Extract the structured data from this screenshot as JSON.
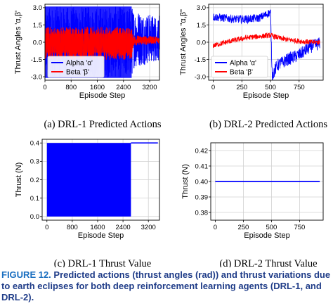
{
  "caption": {
    "label": "FIGURE 12.",
    "text": "Predicted actions (thrust angles (rad)) and thrust variations due to earth eclipses for both deep reinforcement learning agents (DRL-1, and DRL-2)."
  },
  "panels": [
    {
      "id": "a",
      "subcaption": "(a)  DRL-1 Predicted Actions",
      "chart_data": {
        "type": "line",
        "xlabel": "Episode Step",
        "ylabel": "Thrust Angles 'α,β'",
        "xlim": [
          0,
          3500
        ],
        "ylim": [
          -3.3,
          3.3
        ],
        "xticks": [
          0,
          800,
          1600,
          2400,
          3200
        ],
        "yticks": [
          -3.0,
          -1.5,
          0.0,
          1.5,
          3.0
        ],
        "grid": true,
        "legend": "lower-left",
        "series": [
          {
            "name": "Alpha 'α'",
            "color": "#0000ff",
            "description_points": [
              [
                0,
                0.0
              ],
              [
                2650,
                0.0
              ],
              [
                2700,
                0.4
              ],
              [
                3000,
                0.6
              ],
              [
                3500,
                0.7
              ]
            ],
            "band_low": [
              [
                0,
                -3.1
              ],
              [
                2650,
                -3.1
              ],
              [
                2700,
                -2.3
              ],
              [
                3000,
                -2.0
              ],
              [
                3500,
                -1.6
              ]
            ],
            "band_high": [
              [
                0,
                3.1
              ],
              [
                2650,
                3.1
              ],
              [
                2700,
                3.0
              ],
              [
                3000,
                2.6
              ],
              [
                3500,
                2.3
              ]
            ]
          },
          {
            "name": "Beta 'β'",
            "color": "#ff0000",
            "band_low": [
              [
                0,
                -1.6
              ],
              [
                2650,
                -1.5
              ],
              [
                2700,
                -0.3
              ],
              [
                3500,
                -0.1
              ]
            ],
            "band_high": [
              [
                0,
                1.4
              ],
              [
                2650,
                1.3
              ],
              [
                2700,
                0.6
              ],
              [
                3500,
                0.5
              ]
            ]
          }
        ]
      }
    },
    {
      "id": "b",
      "subcaption": "(b)  DRL-2 Predicted Actions",
      "chart_data": {
        "type": "line",
        "xlabel": "Episode Step",
        "ylabel": "Thrust Angles \"α,β\"",
        "xlim": [
          -40,
          960
        ],
        "ylim": [
          -3.3,
          3.3
        ],
        "xticks": [
          0,
          250,
          500,
          750
        ],
        "yticks": [
          -3.0,
          -1.5,
          0.0,
          1.5,
          3.0
        ],
        "grid": true,
        "legend": "lower-left",
        "series": [
          {
            "name": "Alpha 'α'",
            "color": "#0000ff",
            "points": [
              [
                0,
                2.2
              ],
              [
                100,
                2.1
              ],
              [
                200,
                2.0
              ],
              [
                300,
                2.0
              ],
              [
                400,
                2.1
              ],
              [
                500,
                2.6
              ],
              [
                515,
                -2.9
              ],
              [
                560,
                -2.0
              ],
              [
                650,
                -1.5
              ],
              [
                750,
                -1.1
              ],
              [
                850,
                -0.4
              ],
              [
                930,
                -0.1
              ]
            ]
          },
          {
            "name": "Beta 'β'",
            "color": "#ff0000",
            "points": [
              [
                0,
                -0.3
              ],
              [
                150,
                0.1
              ],
              [
                300,
                0.4
              ],
              [
                500,
                0.6
              ],
              [
                600,
                0.3
              ],
              [
                750,
                0.1
              ],
              [
                850,
                0.0
              ],
              [
                930,
                0.0
              ]
            ]
          }
        ]
      }
    },
    {
      "id": "c",
      "subcaption": "(c)  DRL-1 Thrust Value",
      "chart_data": {
        "type": "area",
        "xlabel": "Episode Step",
        "ylabel": "Thrust (N)",
        "xlim": [
          -150,
          3550
        ],
        "ylim": [
          -0.02,
          0.42
        ],
        "xticks": [
          0,
          800,
          1600,
          2400,
          3200
        ],
        "yticks": [
          0.0,
          0.1,
          0.2,
          0.3,
          0.4
        ],
        "grid": true,
        "series": [
          {
            "color": "#0000ff",
            "points": [
              [
                0,
                0.4
              ],
              [
                2650,
                0.4
              ],
              [
                2650,
                0.0
              ],
              [
                0,
                0.0
              ],
              [
                2650,
                0.4
              ],
              [
                3500,
                0.4
              ]
            ],
            "oscillating_0_to_0.4_until": 2650,
            "constant_after": 0.4
          }
        ]
      }
    },
    {
      "id": "d",
      "subcaption": "(d)  DRL-2 Thrust Value",
      "chart_data": {
        "type": "line",
        "xlabel": "Episode Step",
        "ylabel": "Thrust (N)",
        "xlim": [
          -40,
          960
        ],
        "ylim": [
          0.375,
          0.425
        ],
        "xticks": [
          0,
          250,
          500,
          750
        ],
        "yticks": [
          0.38,
          0.39,
          0.4,
          0.41,
          0.42
        ],
        "grid": true,
        "series": [
          {
            "color": "#0000ff",
            "points": [
              [
                0,
                0.4
              ],
              [
                930,
                0.4
              ]
            ]
          }
        ]
      }
    }
  ]
}
